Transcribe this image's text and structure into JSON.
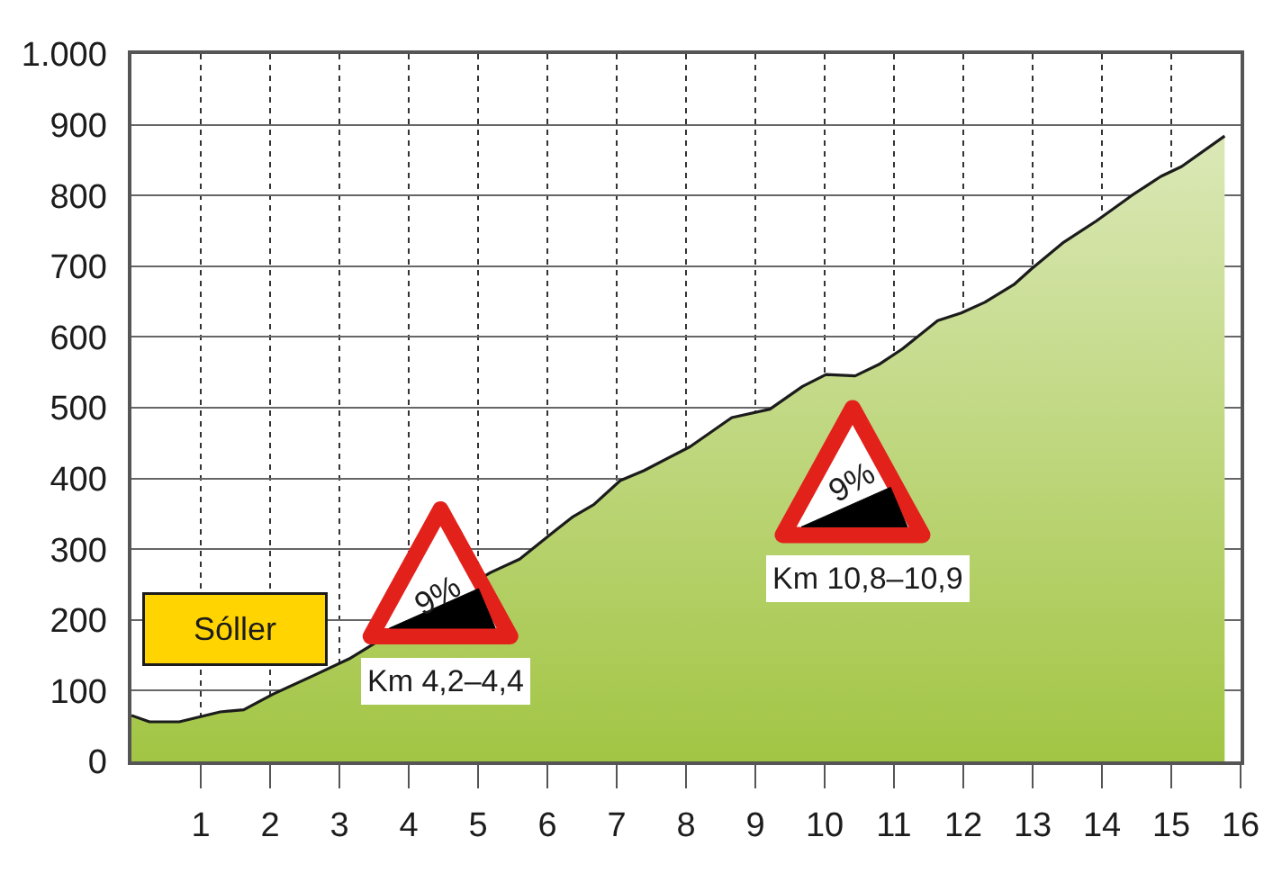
{
  "chart_data": {
    "type": "area",
    "color": "#a2c544",
    "x": [
      0,
      0.26,
      0.69,
      1.28,
      1.62,
      2.04,
      2.64,
      3.14,
      5.18,
      5.6,
      6.11,
      6.37,
      6.67,
      7.05,
      7.39,
      8.06,
      8.66,
      9.21,
      9.68,
      10.02,
      10.44,
      10.78,
      11.12,
      11.63,
      11.97,
      12.31,
      12.73,
      12.98,
      13.45,
      13.92,
      14.43,
      14.85,
      15.15,
      15.77
    ],
    "values": [
      65,
      56,
      56,
      70,
      73,
      95,
      122,
      145,
      267,
      286,
      326,
      346,
      363,
      397,
      411,
      445,
      486,
      498,
      530,
      547,
      545,
      561,
      583,
      623,
      634,
      649,
      674,
      696,
      734,
      764,
      800,
      827,
      841,
      884
    ],
    "xlim": [
      0,
      16
    ],
    "xticks": [
      1,
      2,
      3,
      4,
      5,
      6,
      7,
      8,
      9,
      10,
      11,
      12,
      13,
      14,
      15,
      16
    ],
    "ylim": [
      0,
      1000
    ],
    "yticks": [
      0,
      100,
      200,
      300,
      400,
      500,
      600,
      700,
      800,
      900,
      {
        "value": 1000,
        "label": "1.000"
      }
    ],
    "grid": true,
    "annotations": [
      "Sóller",
      "9%",
      "Km 4,2–4,4",
      "9%",
      "Km 10,8–10,9"
    ]
  }
}
